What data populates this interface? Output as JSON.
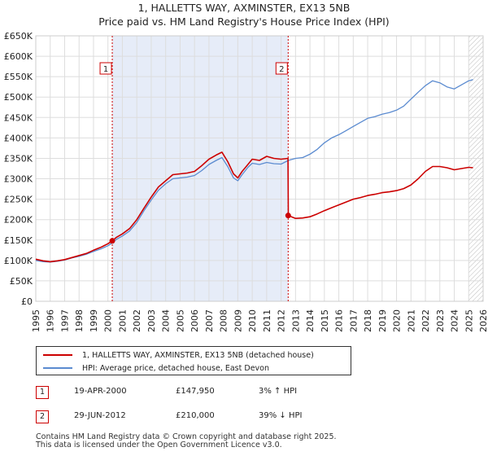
{
  "chart_data": {
    "type": "line",
    "title": "1, HALLETTS WAY, AXMINSTER, EX13 5NB",
    "subtitle": "Price paid vs. HM Land Registry's House Price Index (HPI)",
    "xlim": [
      1995,
      2026
    ],
    "ylim": [
      0,
      650000
    ],
    "y_ticks": [
      0,
      50000,
      100000,
      150000,
      200000,
      250000,
      300000,
      350000,
      400000,
      450000,
      500000,
      550000,
      600000,
      650000
    ],
    "y_tick_labels": [
      "£0",
      "£50K",
      "£100K",
      "£150K",
      "£200K",
      "£250K",
      "£300K",
      "£350K",
      "£400K",
      "£450K",
      "£500K",
      "£550K",
      "£600K",
      "£650K"
    ],
    "x_ticks": [
      "1995",
      "1996",
      "1997",
      "1998",
      "1999",
      "2000",
      "2001",
      "2002",
      "2003",
      "2004",
      "2005",
      "2006",
      "2007",
      "2008",
      "2009",
      "2010",
      "2011",
      "2012",
      "2013",
      "2014",
      "2015",
      "2016",
      "2017",
      "2018",
      "2019",
      "2020",
      "2021",
      "2022",
      "2023",
      "2024",
      "2025",
      "2026"
    ],
    "grid": true,
    "shaded_period": [
      2000.3,
      2012.5
    ],
    "forecast_start": 2025.0,
    "series": [
      {
        "name": "1, HALLETTS WAY, AXMINSTER, EX13 5NB (detached house)",
        "color": "#cc0000",
        "x": [
          1995.0,
          1995.5,
          1996.0,
          1996.5,
          1997.0,
          1997.5,
          1998.0,
          1998.5,
          1999.0,
          1999.5,
          2000.0,
          2000.3,
          2000.6,
          2001.0,
          2001.5,
          2002.0,
          2002.5,
          2003.0,
          2003.5,
          2004.0,
          2004.5,
          2005.0,
          2005.5,
          2006.0,
          2006.5,
          2007.0,
          2007.5,
          2007.9,
          2008.3,
          2008.7,
          2009.0,
          2009.3,
          2009.7,
          2010.0,
          2010.5,
          2011.0,
          2011.5,
          2012.0,
          2012.48,
          2012.5,
          2013.0,
          2013.5,
          2014.0,
          2014.5,
          2015.0,
          2015.5,
          2016.0,
          2016.5,
          2017.0,
          2017.5,
          2018.0,
          2018.5,
          2019.0,
          2019.5,
          2020.0,
          2020.5,
          2021.0,
          2021.5,
          2022.0,
          2022.5,
          2023.0,
          2023.5,
          2024.0,
          2024.5,
          2025.0,
          2025.3
        ],
        "y": [
          103000,
          99000,
          97000,
          99000,
          102000,
          107000,
          112000,
          117000,
          125000,
          132000,
          141000,
          147950,
          157000,
          165000,
          178000,
          200000,
          228000,
          255000,
          280000,
          295000,
          310000,
          312000,
          314000,
          318000,
          332000,
          348000,
          358000,
          365000,
          342000,
          312000,
          302000,
          318000,
          335000,
          348000,
          345000,
          355000,
          350000,
          348000,
          350000,
          210000,
          203000,
          204000,
          207000,
          214000,
          222000,
          229000,
          236000,
          243000,
          250000,
          254000,
          259000,
          262000,
          266000,
          268000,
          271000,
          276000,
          285000,
          300000,
          318000,
          330000,
          330000,
          327000,
          322000,
          325000,
          328000,
          327000
        ]
      },
      {
        "name": "HPI: Average price, detached house, East Devon",
        "color": "#5b8bd0",
        "x": [
          1995.0,
          1995.5,
          1996.0,
          1996.5,
          1997.0,
          1997.5,
          1998.0,
          1998.5,
          1999.0,
          1999.5,
          2000.0,
          2000.3,
          2000.6,
          2001.0,
          2001.5,
          2002.0,
          2002.5,
          2003.0,
          2003.5,
          2004.0,
          2004.5,
          2005.0,
          2005.5,
          2006.0,
          2006.5,
          2007.0,
          2007.5,
          2007.9,
          2008.3,
          2008.7,
          2009.0,
          2009.3,
          2009.7,
          2010.0,
          2010.5,
          2011.0,
          2011.5,
          2012.0,
          2012.5,
          2013.0,
          2013.5,
          2014.0,
          2014.5,
          2015.0,
          2015.5,
          2016.0,
          2016.5,
          2017.0,
          2017.5,
          2018.0,
          2018.5,
          2019.0,
          2019.5,
          2020.0,
          2020.5,
          2021.0,
          2021.5,
          2022.0,
          2022.5,
          2023.0,
          2023.5,
          2024.0,
          2024.5,
          2025.0,
          2025.3
        ],
        "y": [
          100000,
          97000,
          96000,
          98000,
          101000,
          106000,
          110000,
          115000,
          122000,
          128000,
          136000,
          143000,
          152000,
          160000,
          172000,
          193000,
          222000,
          248000,
          272000,
          288000,
          300000,
          302000,
          304000,
          308000,
          320000,
          335000,
          345000,
          352000,
          330000,
          302000,
          295000,
          310000,
          328000,
          338000,
          335000,
          340000,
          337000,
          336000,
          345000,
          350000,
          352000,
          360000,
          372000,
          388000,
          400000,
          408000,
          418000,
          428000,
          438000,
          448000,
          452000,
          458000,
          462000,
          468000,
          478000,
          495000,
          512000,
          528000,
          540000,
          535000,
          525000,
          520000,
          530000,
          540000,
          543000
        ]
      }
    ],
    "sales": [
      {
        "label": "1",
        "x": 2000.3,
        "y": 147950
      },
      {
        "label": "2",
        "x": 2012.49,
        "y": 210000
      }
    ]
  },
  "legend": {
    "property_label": "1, HALLETTS WAY, AXMINSTER, EX13 5NB (detached house)",
    "hpi_label": "HPI: Average price, detached house, East Devon"
  },
  "sales_table": [
    {
      "num": "1",
      "date": "19-APR-2000",
      "price": "£147,950",
      "hpi": "3% ↑ HPI"
    },
    {
      "num": "2",
      "date": "29-JUN-2012",
      "price": "£210,000",
      "hpi": "39% ↓ HPI"
    }
  ],
  "footer": {
    "line1": "Contains HM Land Registry data © Crown copyright and database right 2025.",
    "line2": "This data is licensed under the Open Government Licence v3.0."
  },
  "colors": {
    "property": "#cc0000",
    "hpi": "#5b8bd0",
    "shade": "#e6ecf8",
    "grid": "#dddddd"
  }
}
